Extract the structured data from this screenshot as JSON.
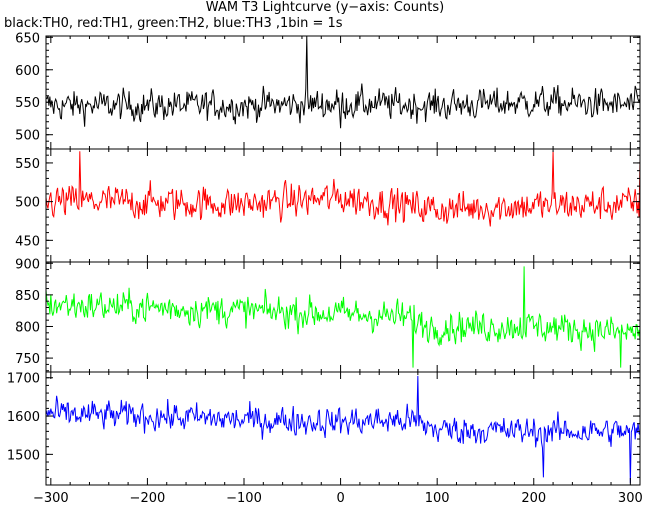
{
  "header": {
    "title": "WAM T3 Lightcurve (y−axis: Counts)",
    "subtitle": "black:TH0, red:TH1, green:TH2, blue:TH3 ,1bin = 1s"
  },
  "chart_data": {
    "type": "line",
    "xlim": [
      -305,
      310
    ],
    "x_ticks": [
      -300,
      -200,
      -100,
      0,
      100,
      200,
      300
    ],
    "x_tick_labels": [
      "−300",
      "−200",
      "−100",
      "0",
      "100",
      "200",
      "300"
    ],
    "bin_seconds": 1,
    "grid": false,
    "panels": [
      {
        "name": "TH0",
        "color": "#000000",
        "ylim": [
          478,
          652
        ],
        "yticks": [
          500,
          550,
          600,
          650
        ],
        "level": [
          [
            -305,
            545
          ],
          [
            -200,
            545
          ],
          [
            -100,
            545
          ],
          [
            0,
            548
          ],
          [
            100,
            545
          ],
          [
            200,
            550
          ],
          [
            310,
            545
          ]
        ],
        "noise_amplitude": 30,
        "spikes": [
          {
            "x": -35,
            "y": 658
          },
          {
            "x": 0,
            "y": 510
          }
        ]
      },
      {
        "name": "TH1",
        "color": "#ff0000",
        "ylim": [
          422,
          568
        ],
        "yticks": [
          450,
          500,
          550
        ],
        "level": [
          [
            -305,
            500
          ],
          [
            -250,
            500
          ],
          [
            -100,
            497
          ],
          [
            0,
            505
          ],
          [
            100,
            490
          ],
          [
            200,
            495
          ],
          [
            310,
            497
          ]
        ],
        "noise_amplitude": 28,
        "spikes": [
          {
            "x": -270,
            "y": 565
          },
          {
            "x": 220,
            "y": 565
          },
          {
            "x": 310,
            "y": 555
          }
        ]
      },
      {
        "name": "TH2",
        "color": "#00ff00",
        "ylim": [
          728,
          902
        ],
        "yticks": [
          750,
          800,
          850,
          900
        ],
        "level": [
          [
            -305,
            835
          ],
          [
            -200,
            830
          ],
          [
            -100,
            825
          ],
          [
            0,
            820
          ],
          [
            70,
            815
          ],
          [
            90,
            800
          ],
          [
            200,
            800
          ],
          [
            310,
            790
          ]
        ],
        "noise_amplitude": 32,
        "spikes": [
          {
            "x": 75,
            "y": 735
          },
          {
            "x": 190,
            "y": 895
          },
          {
            "x": 290,
            "y": 735
          }
        ]
      },
      {
        "name": "TH3",
        "color": "#0000ff",
        "ylim": [
          1420,
          1715
        ],
        "yticks": [
          1500,
          1600,
          1700
        ],
        "level": [
          [
            -305,
            1605
          ],
          [
            -200,
            1600
          ],
          [
            -100,
            1590
          ],
          [
            0,
            1585
          ],
          [
            70,
            1590
          ],
          [
            100,
            1565
          ],
          [
            200,
            1560
          ],
          [
            310,
            1560
          ]
        ],
        "noise_amplitude": 48,
        "spikes": [
          {
            "x": 80,
            "y": 1705
          },
          {
            "x": 210,
            "y": 1440
          },
          {
            "x": 300,
            "y": 1425
          }
        ]
      }
    ]
  }
}
